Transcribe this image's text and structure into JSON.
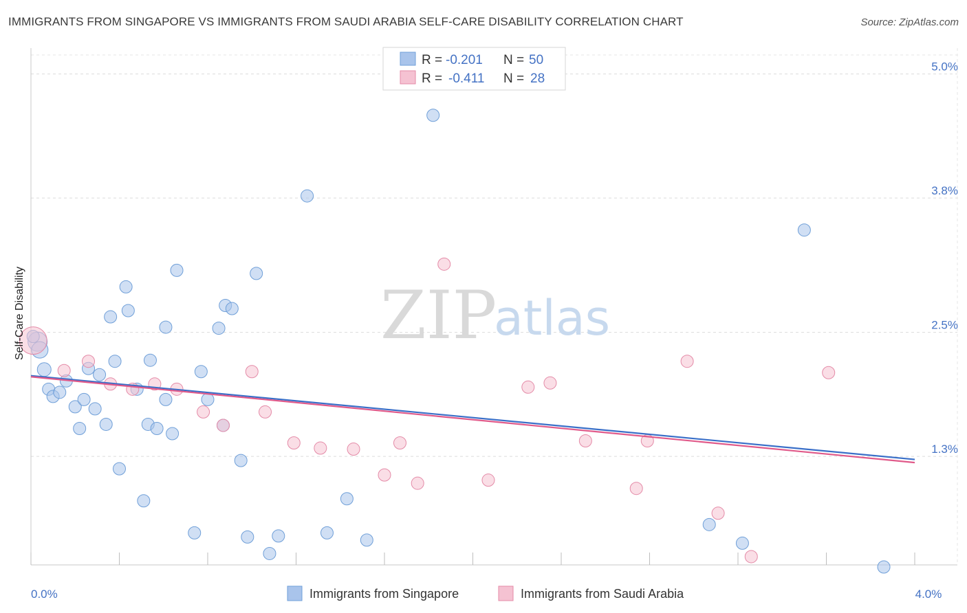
{
  "title": "IMMIGRANTS FROM SINGAPORE VS IMMIGRANTS FROM SAUDI ARABIA SELF-CARE DISABILITY CORRELATION CHART",
  "source": "Source: ZipAtlas.com",
  "watermark": {
    "zip": "ZIP",
    "atlas": "atlas"
  },
  "chart_data": {
    "type": "scatter",
    "ylabel": "Self-Care Disability",
    "xlim": [
      0.0,
      4.0
    ],
    "ylim": [
      0.25,
      5.25
    ],
    "x_ticks": [
      0.0,
      0.4,
      0.8,
      1.2,
      1.6,
      2.0,
      2.4,
      2.8,
      3.2,
      3.6,
      4.0
    ],
    "x_tick_labels": {
      "0.0": "0.0%",
      "4.0": "4.0%"
    },
    "y_ticks": [
      1.3,
      2.5,
      3.8,
      5.0
    ],
    "y_tick_labels": [
      "1.3%",
      "2.5%",
      "3.8%",
      "5.0%"
    ],
    "grid": true,
    "legend_placement": "top-center",
    "series": [
      {
        "name": "Immigrants from Singapore",
        "color": "#a9c4eb",
        "stroke": "#6f9fd8",
        "line_color": "#3a6fc8",
        "R": "-0.201",
        "N": "50",
        "trend": [
          [
            0.0,
            2.08
          ],
          [
            4.0,
            1.27
          ]
        ],
        "points": [
          [
            0.03,
            2.41,
            14
          ],
          [
            0.04,
            2.33,
            12
          ],
          [
            0.06,
            2.14,
            10
          ],
          [
            0.08,
            1.95,
            9
          ],
          [
            0.1,
            1.88,
            9
          ],
          [
            0.13,
            1.92,
            9
          ],
          [
            0.16,
            2.03,
            9
          ],
          [
            0.2,
            1.78,
            9
          ],
          [
            0.22,
            1.57,
            9
          ],
          [
            0.24,
            1.85,
            9
          ],
          [
            0.26,
            2.15,
            9
          ],
          [
            0.29,
            1.76,
            9
          ],
          [
            0.31,
            2.09,
            9
          ],
          [
            0.34,
            1.61,
            9
          ],
          [
            0.36,
            2.65,
            9
          ],
          [
            0.38,
            2.22,
            9
          ],
          [
            0.4,
            1.18,
            9
          ],
          [
            0.43,
            2.94,
            9
          ],
          [
            0.44,
            2.71,
            9
          ],
          [
            0.48,
            1.95,
            9
          ],
          [
            0.51,
            0.87,
            9
          ],
          [
            0.53,
            1.61,
            9
          ],
          [
            0.54,
            2.23,
            9
          ],
          [
            0.57,
            1.57,
            9
          ],
          [
            0.61,
            1.85,
            9
          ],
          [
            0.61,
            2.55,
            9
          ],
          [
            0.64,
            1.52,
            9
          ],
          [
            0.66,
            3.1,
            9
          ],
          [
            0.74,
            0.56,
            9
          ],
          [
            0.77,
            2.12,
            9
          ],
          [
            0.8,
            1.85,
            9
          ],
          [
            0.85,
            2.54,
            9
          ],
          [
            0.87,
            1.6,
            9
          ],
          [
            0.88,
            2.76,
            9
          ],
          [
            0.91,
            2.73,
            9
          ],
          [
            0.95,
            1.26,
            9
          ],
          [
            0.98,
            0.52,
            9
          ],
          [
            1.02,
            3.07,
            9
          ],
          [
            1.08,
            0.36,
            9
          ],
          [
            1.12,
            0.53,
            9
          ],
          [
            1.25,
            3.82,
            9
          ],
          [
            1.34,
            0.56,
            9
          ],
          [
            1.43,
            0.89,
            9
          ],
          [
            1.52,
            0.49,
            9
          ],
          [
            1.82,
            4.6,
            9
          ],
          [
            3.07,
            0.64,
            9
          ],
          [
            3.22,
            0.46,
            9
          ],
          [
            3.5,
            3.49,
            9
          ],
          [
            3.86,
            0.23,
            9
          ],
          [
            0.01,
            2.46,
            9
          ]
        ]
      },
      {
        "name": "Immigrants from Saudi Arabia",
        "color": "#f5c2d2",
        "stroke": "#e48aa7",
        "line_color": "#e05a8a",
        "R": "-0.411",
        "N": "28",
        "trend": [
          [
            0.0,
            2.07
          ],
          [
            4.0,
            1.24
          ]
        ],
        "points": [
          [
            0.01,
            2.42,
            20
          ],
          [
            0.15,
            2.13,
            9
          ],
          [
            0.26,
            2.22,
            9
          ],
          [
            0.36,
            2.0,
            9
          ],
          [
            0.46,
            1.95,
            9
          ],
          [
            0.56,
            2.0,
            9
          ],
          [
            0.66,
            1.95,
            9
          ],
          [
            0.78,
            1.73,
            9
          ],
          [
            0.87,
            1.6,
            9
          ],
          [
            1.0,
            2.12,
            9
          ],
          [
            1.06,
            1.73,
            9
          ],
          [
            1.19,
            1.43,
            9
          ],
          [
            1.31,
            1.38,
            9
          ],
          [
            1.46,
            1.37,
            9
          ],
          [
            1.6,
            1.12,
            9
          ],
          [
            1.67,
            1.43,
            9
          ],
          [
            1.75,
            1.04,
            9
          ],
          [
            1.87,
            3.16,
            9
          ],
          [
            2.07,
            1.07,
            9
          ],
          [
            2.25,
            1.97,
            9
          ],
          [
            2.35,
            2.01,
            9
          ],
          [
            2.51,
            1.45,
            9
          ],
          [
            2.74,
            0.99,
            9
          ],
          [
            2.79,
            1.45,
            9
          ],
          [
            2.97,
            2.22,
            9
          ],
          [
            3.11,
            0.75,
            9
          ],
          [
            3.26,
            0.33,
            9
          ],
          [
            3.61,
            2.11,
            9
          ]
        ]
      }
    ]
  }
}
